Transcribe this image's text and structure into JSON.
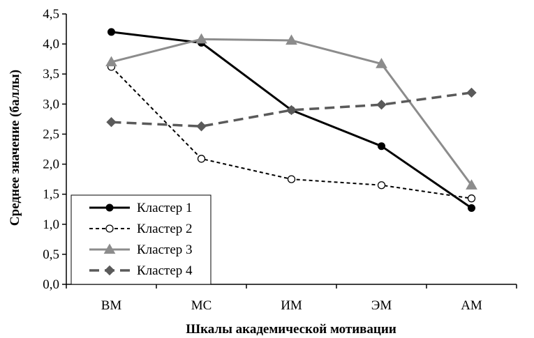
{
  "chart_data": {
    "type": "line",
    "categories": [
      "ВМ",
      "МС",
      "ИМ",
      "ЭМ",
      "АМ"
    ],
    "xlabel": "Шкалы академической мотивации",
    "ylabel": "Среднее значение (баллы)",
    "ylim": [
      0,
      4.5
    ],
    "ytick_labels": [
      "0,0",
      "0,5",
      "1,0",
      "1,5",
      "2,0",
      "2,5",
      "3,0",
      "3,5",
      "4,0",
      "4,5"
    ],
    "grid": false,
    "legend_position": "bottom-left",
    "series": [
      {
        "name": "Кластер 1",
        "values": [
          4.2,
          4.02,
          2.9,
          2.3,
          1.27
        ],
        "color": "#000000",
        "dash": "solid",
        "marker": "filled-circle"
      },
      {
        "name": "Кластер 2",
        "values": [
          3.62,
          2.09,
          1.75,
          1.65,
          1.43
        ],
        "color": "#000000",
        "dash": "dotted",
        "marker": "open-circle"
      },
      {
        "name": "Кластер 3",
        "values": [
          3.7,
          4.08,
          4.06,
          3.67,
          1.65
        ],
        "color": "#8c8c8c",
        "dash": "solid",
        "marker": "triangle"
      },
      {
        "name": "Кластер 4",
        "values": [
          2.7,
          2.63,
          2.9,
          2.99,
          3.19
        ],
        "color": "#5a5a5a",
        "dash": "dashed",
        "marker": "diamond"
      }
    ]
  }
}
